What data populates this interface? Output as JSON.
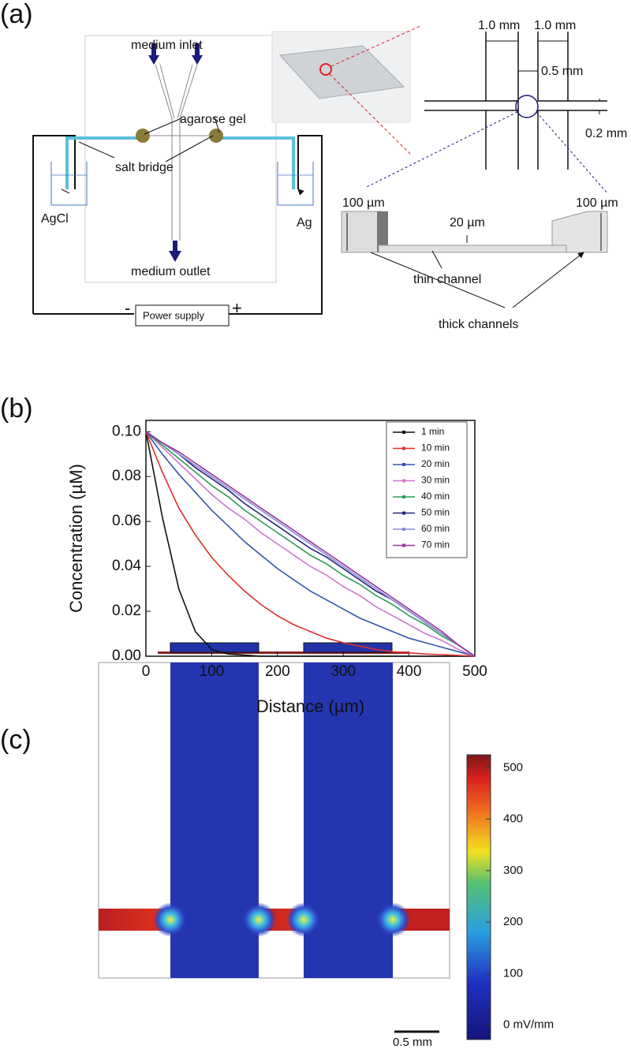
{
  "panel_labels": [
    "(a)",
    "(b)",
    "(c)"
  ],
  "diagram": {
    "medium_inlet": "medium inlet",
    "agarose_gel": "agarose  gel",
    "salt_bridge": "salt bridge",
    "agcl": "AgCl",
    "ag": "Ag",
    "medium_outlet": "medium outlet",
    "minus": "-",
    "plus": "+",
    "power_supply": "Power supply",
    "width_left": "1.0 mm",
    "width_right": "1.0 mm",
    "gap": "0.5 mm",
    "depth": "0.2 mm",
    "thick_left": "100 µm",
    "thick_right": "100 µm",
    "thin_height": "20 µm",
    "thin_channel": "thin channel",
    "thick_channels": "thick channels"
  },
  "chart_data": [
    {
      "type": "line",
      "xlabel": "Distance (µm)",
      "ylabel": "Concentration (µM)",
      "x": [
        0,
        25,
        50,
        75,
        100,
        125,
        150,
        175,
        200,
        225,
        250,
        275,
        300,
        325,
        350,
        375,
        400,
        425,
        450,
        475,
        500
      ],
      "series": [
        {
          "name": "1 min",
          "color": "#111111",
          "values": [
            0.1,
            0.062,
            0.03,
            0.011,
            0.003,
            0.001,
            0.0005,
            0,
            0,
            0,
            0,
            0,
            0,
            0,
            0,
            0,
            0,
            0,
            0,
            0,
            0
          ]
        },
        {
          "name": "10 min",
          "color": "#e0302a",
          "values": [
            0.1,
            0.082,
            0.066,
            0.054,
            0.044,
            0.036,
            0.029,
            0.023,
            0.018,
            0.014,
            0.011,
            0.008,
            0.006,
            0.0045,
            0.003,
            0.002,
            0.0015,
            0.001,
            0.0007,
            0.0004,
            0
          ]
        },
        {
          "name": "20 min",
          "color": "#3355aa",
          "values": [
            0.1,
            0.09,
            0.081,
            0.073,
            0.065,
            0.058,
            0.051,
            0.045,
            0.039,
            0.034,
            0.029,
            0.025,
            0.021,
            0.017,
            0.014,
            0.011,
            0.008,
            0.006,
            0.004,
            0.002,
            0
          ]
        },
        {
          "name": "30 min",
          "color": "#cc77cc",
          "values": [
            0.1,
            0.093,
            0.086,
            0.079,
            0.072,
            0.066,
            0.061,
            0.055,
            0.05,
            0.045,
            0.04,
            0.036,
            0.031,
            0.027,
            0.022,
            0.018,
            0.014,
            0.01,
            0.007,
            0.003,
            0
          ]
        },
        {
          "name": "40 min",
          "color": "#2a9a55",
          "values": [
            0.1,
            0.094,
            0.088,
            0.082,
            0.076,
            0.071,
            0.065,
            0.06,
            0.055,
            0.05,
            0.045,
            0.041,
            0.036,
            0.032,
            0.027,
            0.023,
            0.018,
            0.014,
            0.009,
            0.005,
            0
          ]
        },
        {
          "name": "50 min",
          "color": "#222277",
          "values": [
            0.1,
            0.095,
            0.09,
            0.084,
            0.079,
            0.074,
            0.068,
            0.063,
            0.058,
            0.053,
            0.048,
            0.044,
            0.039,
            0.034,
            0.029,
            0.025,
            0.02,
            0.015,
            0.01,
            0.005,
            0
          ]
        },
        {
          "name": "60 min",
          "color": "#8888dd",
          "values": [
            0.1,
            0.095,
            0.09,
            0.085,
            0.08,
            0.075,
            0.07,
            0.065,
            0.06,
            0.055,
            0.05,
            0.045,
            0.04,
            0.035,
            0.03,
            0.025,
            0.02,
            0.015,
            0.01,
            0.005,
            0
          ]
        },
        {
          "name": "70 min",
          "color": "#993399",
          "values": [
            0.1,
            0.095,
            0.091,
            0.086,
            0.081,
            0.076,
            0.071,
            0.066,
            0.061,
            0.056,
            0.051,
            0.046,
            0.041,
            0.036,
            0.031,
            0.026,
            0.021,
            0.016,
            0.011,
            0.005,
            0
          ]
        }
      ],
      "xlim": [
        0,
        500
      ],
      "xticks": [
        0,
        100,
        200,
        300,
        400,
        500
      ],
      "ylim": [
        0,
        0.105
      ],
      "yticks": [
        {
          "value": 0,
          "label": "0.00"
        },
        0.02,
        0.04,
        0.06,
        0.08,
        {
          "value": 0.1,
          "label": "0.10"
        }
      ],
      "legend": "upper right"
    },
    {
      "type": "heatmap",
      "clim": [
        -28,
        525
      ],
      "cticks": [
        {
          "value": 0,
          "label": "0 mV/mm"
        },
        100,
        200,
        300,
        400,
        500
      ],
      "scale_bar": "0.5 mm"
    }
  ]
}
